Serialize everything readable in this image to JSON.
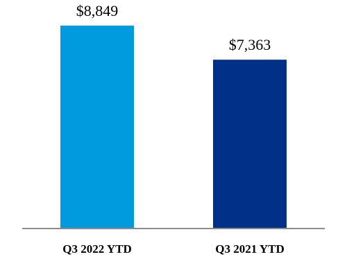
{
  "chart_data": {
    "type": "bar",
    "categories": [
      "Q3 2022 YTD",
      "Q3 2021 YTD"
    ],
    "values": [
      8849,
      7363
    ],
    "data_labels": [
      "$8,849",
      "$7,363"
    ],
    "colors": [
      "#009ADE",
      "#003087"
    ],
    "axis_color": "#8C8C8C",
    "title": "",
    "xlabel": "",
    "ylabel": "",
    "ylim": [
      0,
      8849
    ],
    "grid": false,
    "legend": "none"
  }
}
